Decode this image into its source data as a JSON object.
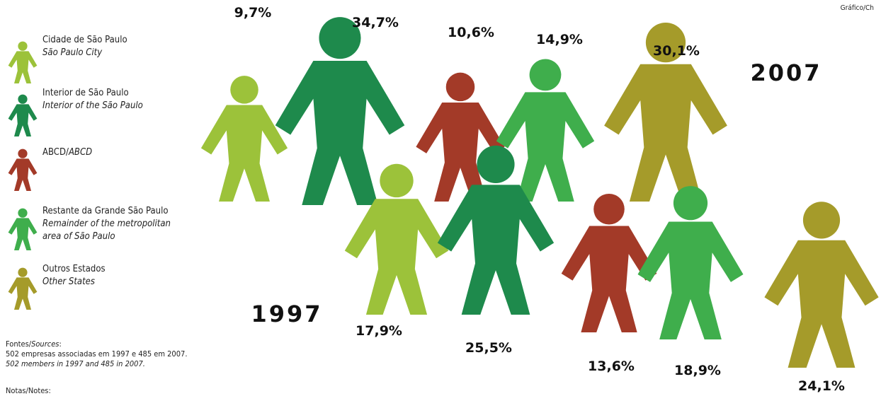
{
  "chart_data": {
    "type": "pictogram",
    "categories": [
      "Cidade de São Paulo",
      "Interior de São Paulo",
      "ABCD",
      "Restante da Grande São Paulo",
      "Outros Estados"
    ],
    "categories_en": [
      "São Paulo City",
      "Interior of the São Paulo",
      "ABCD",
      "Remainder of the metropolitan area of São Paulo",
      "Other States"
    ],
    "colors": [
      "#9cc23a",
      "#1e8a4c",
      "#a33a28",
      "#3fae4c",
      "#a59b2a"
    ],
    "series": [
      {
        "name": "2007",
        "values": [
          9.7,
          34.7,
          10.6,
          14.9,
          30.1
        ],
        "value_labels": [
          "9,7%",
          "34,7%",
          "10,6%",
          "14,9%",
          "30,1%"
        ]
      },
      {
        "name": "1997",
        "values": [
          17.9,
          25.5,
          13.6,
          18.9,
          24.1
        ],
        "value_labels": [
          "17,9%",
          "25,5%",
          "13,6%",
          "18,9%",
          "24,1%"
        ]
      }
    ]
  },
  "separator": "/",
  "credit": "Gráfico/Ch",
  "sources": {
    "label_pt": "Fontes/",
    "label_en": "Sources",
    "colon": ":",
    "text_pt": "502 empresas associadas em 1997 e 485 em 2007.",
    "text_en": "502 members in 1997 and 485 in 2007."
  },
  "notes_label": "Notas/Notes:"
}
